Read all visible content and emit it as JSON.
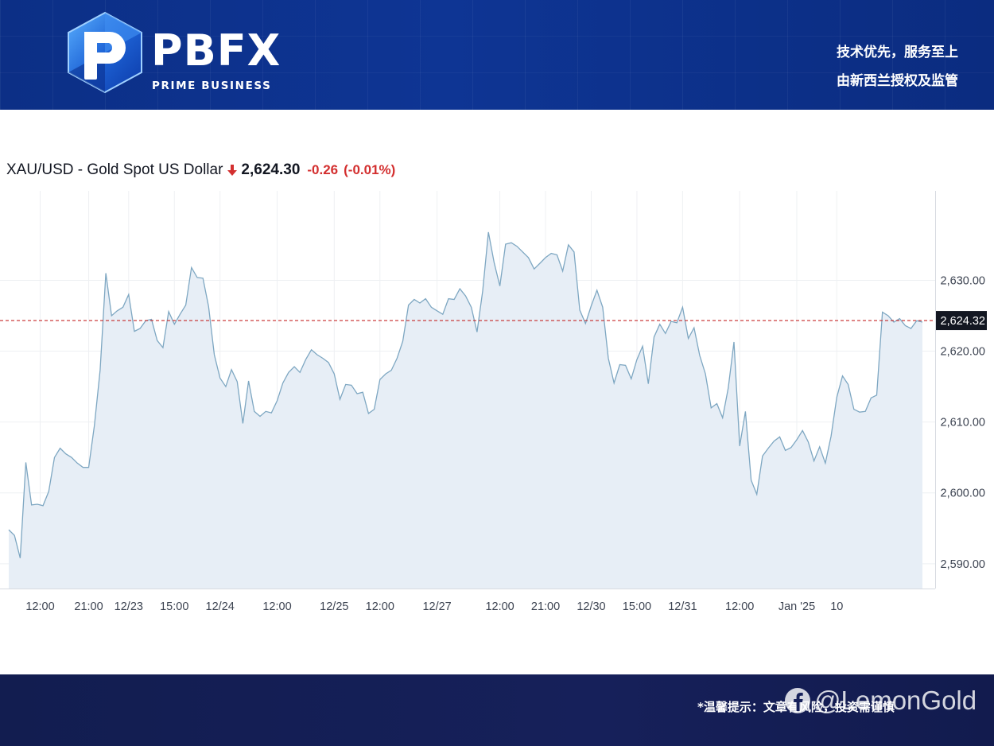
{
  "header": {
    "logo_text": "PBFX",
    "logo_subtitle": "PRIME BUSINESS",
    "slogan_line1": "技术优先，服务至上",
    "slogan_line2": "由新西兰授权及监管"
  },
  "quote": {
    "symbol": "XAU/USD - Gold Spot US Dollar",
    "direction_icon": "down-arrow-icon",
    "price": "2,624.30",
    "change": "-0.26",
    "change_pct": "(-0.01%)",
    "down_color": "#d32f2f"
  },
  "chart_data": {
    "type": "area",
    "title": "XAU/USD - Gold Spot US Dollar",
    "xlabel": "",
    "ylabel": "",
    "ylim": [
      2586.5,
      2641.5
    ],
    "y_ticks": [
      2590,
      2600,
      2610,
      2620,
      2630
    ],
    "y_tick_labels": [
      "2,590.00",
      "2,600.00",
      "2,610.00",
      "2,620.00",
      "2,630.00"
    ],
    "x_ticks": [
      {
        "label": "12:00",
        "index": 5.5
      },
      {
        "label": "21:00",
        "index": 14
      },
      {
        "label": "12/23",
        "index": 21
      },
      {
        "label": "15:00",
        "index": 29
      },
      {
        "label": "12/24",
        "index": 37
      },
      {
        "label": "12:00",
        "index": 47
      },
      {
        "label": "12/25",
        "index": 57
      },
      {
        "label": "12:00",
        "index": 65
      },
      {
        "label": "12/27",
        "index": 75
      },
      {
        "label": "12:00",
        "index": 86
      },
      {
        "label": "21:00",
        "index": 94
      },
      {
        "label": "12/30",
        "index": 102
      },
      {
        "label": "15:00",
        "index": 110
      },
      {
        "label": "12/31",
        "index": 118
      },
      {
        "label": "12:00",
        "index": 128
      },
      {
        "label": "Jan '25",
        "index": 138
      },
      {
        "label": "10",
        "index": 145
      }
    ],
    "reference_line": {
      "value": 2624.32,
      "label": "2,624.32",
      "style": "dashed",
      "color": "#c62828"
    },
    "line_color": "#7ea7c2",
    "fill_color": "#e7eef6",
    "grid": true,
    "series": [
      {
        "values": [
          2594.8,
          2594.0,
          2590.8,
          2604.3,
          2598.3,
          2598.4,
          2598.2,
          2600.2,
          2605.0,
          2606.3,
          2605.5,
          2605.0,
          2604.2,
          2603.6,
          2603.6,
          2609.5,
          2617.3,
          2631.0,
          2625.0,
          2625.7,
          2626.2,
          2628.0,
          2622.8,
          2623.2,
          2624.3,
          2624.5,
          2621.5,
          2620.5,
          2625.6,
          2623.8,
          2625.2,
          2626.5,
          2631.8,
          2630.4,
          2630.3,
          2626.3,
          2619.5,
          2616.2,
          2615.0,
          2617.4,
          2615.7,
          2609.8,
          2615.8,
          2611.5,
          2610.8,
          2611.5,
          2611.3,
          2613.0,
          2615.5,
          2617.0,
          2617.8,
          2617.0,
          2618.8,
          2620.2,
          2619.5,
          2619.0,
          2618.4,
          2616.8,
          2613.2,
          2615.3,
          2615.2,
          2614.0,
          2614.2,
          2611.2,
          2611.8,
          2616.0,
          2616.8,
          2617.3,
          2619.0,
          2621.4,
          2626.5,
          2627.3,
          2626.8,
          2627.4,
          2626.2,
          2625.7,
          2625.2,
          2627.4,
          2627.3,
          2628.8,
          2627.8,
          2626.2,
          2622.7,
          2628.5,
          2636.8,
          2632.5,
          2629.2,
          2635.1,
          2635.3,
          2634.8,
          2634.0,
          2633.2,
          2631.6,
          2632.4,
          2633.2,
          2633.8,
          2633.6,
          2631.3,
          2635.0,
          2634.0,
          2625.8,
          2623.9,
          2626.4,
          2628.6,
          2626.2,
          2619.0,
          2615.5,
          2618.1,
          2618.0,
          2616.1,
          2618.8,
          2620.7,
          2615.4,
          2622.0,
          2623.8,
          2622.5,
          2624.2,
          2624.0,
          2626.2,
          2621.8,
          2623.3,
          2619.4,
          2616.8,
          2612.0,
          2612.6,
          2610.6,
          2614.8,
          2621.3,
          2606.6,
          2611.5,
          2601.8,
          2599.8,
          2605.2,
          2606.3,
          2607.3,
          2607.9,
          2606.0,
          2606.4,
          2607.5,
          2608.8,
          2607.2,
          2604.5,
          2606.5,
          2604.2,
          2608.0,
          2613.5,
          2616.5,
          2615.3,
          2611.8,
          2611.4,
          2611.5,
          2613.4,
          2613.8,
          2625.5,
          2625.0,
          2624.1,
          2624.6,
          2623.6,
          2623.2,
          2624.3,
          2624.1
        ]
      }
    ]
  },
  "footer": {
    "disclaimer": "*温馨提示：文章有风险，投资需谨慎",
    "watermark_icon": "facebook-icon",
    "watermark_text": "@LemonGold"
  }
}
